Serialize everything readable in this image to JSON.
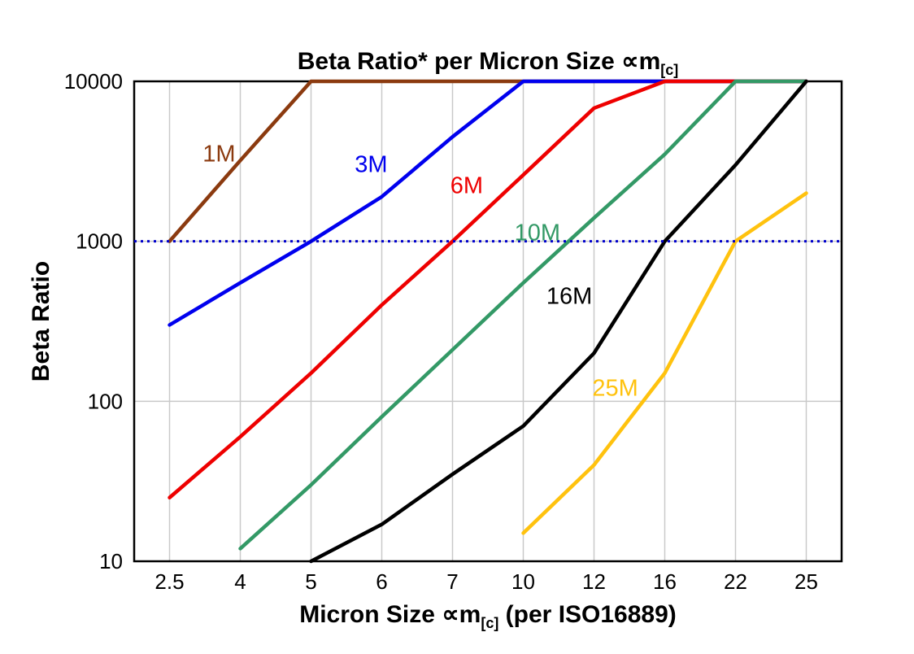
{
  "chart_data": {
    "type": "line",
    "title_main": "Beta Ratio* per Micron Size ∝m",
    "title_sub": "[c]",
    "ylabel": "Beta Ratio",
    "xlabel_main": "Micron Size ∝m",
    "xlabel_sub": "[c]",
    "xlabel_suffix": " (per ISO16889)",
    "categories": [
      "2.5",
      "4",
      "5",
      "6",
      "7",
      "10",
      "12",
      "16",
      "22",
      "25"
    ],
    "y_ticks": [
      "10",
      "100",
      "1000",
      "10000"
    ],
    "y_scale": "log",
    "ylim": [
      10,
      10000
    ],
    "grid": true,
    "grid_color": "#c9c9c9",
    "border_color": "#000000",
    "reference_line": {
      "value": 1000,
      "color": "#0000cc",
      "style": "dotted"
    },
    "series": [
      {
        "name": "1M",
        "color": "#8b3a0f",
        "values": [
          1000,
          3200,
          10000,
          10000,
          10000,
          10000,
          10000,
          10000,
          10000,
          10000
        ],
        "label": {
          "text": "1M",
          "xi": 0.7,
          "y": 3500
        }
      },
      {
        "name": "3M",
        "color": "#0000ee",
        "values": [
          300,
          550,
          1000,
          1900,
          4500,
          10000,
          10000,
          10000,
          10000,
          10000
        ],
        "label": {
          "text": "3M",
          "xi": 2.85,
          "y": 3000
        }
      },
      {
        "name": "6M",
        "color": "#ee0000",
        "values": [
          25,
          60,
          150,
          400,
          1000,
          2600,
          6800,
          10000,
          10000,
          10000
        ],
        "label": {
          "text": "6M",
          "xi": 4.2,
          "y": 2200
        }
      },
      {
        "name": "10M",
        "color": "#339966",
        "values": [
          null,
          12,
          30,
          80,
          210,
          550,
          1400,
          3500,
          10000,
          10000
        ],
        "label": {
          "text": "10M",
          "xi": 5.2,
          "y": 1120
        }
      },
      {
        "name": "25M",
        "color": "#ffc20e",
        "values": [
          null,
          null,
          null,
          null,
          null,
          15,
          40,
          150,
          1000,
          2000
        ],
        "label": {
          "text": "25M",
          "xi": 6.3,
          "y": 120
        }
      },
      {
        "name": "16M",
        "color": "#000000",
        "values": [
          null,
          null,
          10,
          17,
          35,
          70,
          200,
          1000,
          3000,
          10000
        ],
        "label": {
          "text": "16M",
          "xi": 5.65,
          "y": 450
        }
      }
    ]
  }
}
